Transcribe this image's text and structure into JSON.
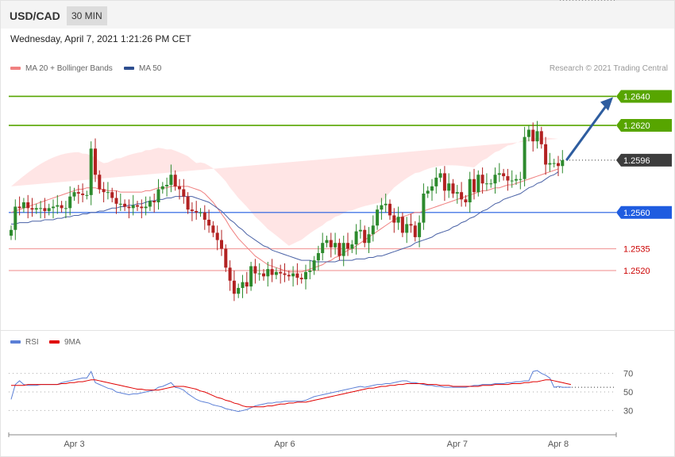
{
  "header": {
    "pair": "USD/CAD",
    "timeframe": "30 MIN",
    "datetime": "Wednesday, April 7, 2021 1:21:26 PM CET"
  },
  "legend": {
    "items": [
      {
        "label": "MA 20 + Bollinger Bands",
        "color": "#f08080"
      },
      {
        "label": "MA 50",
        "color": "#2e4e8f"
      }
    ],
    "credit": "Research © 2021 Trading Central"
  },
  "rsi_legend": {
    "items": [
      {
        "label": "RSI",
        "color": "#5b7fd6"
      },
      {
        "label": "9MA",
        "color": "#e00000"
      }
    ]
  },
  "colors": {
    "up": "#2d8a2d",
    "down": "#b22222",
    "resistance": "#57a500",
    "support": "#1f5ce0",
    "pivot": "#3d3d3d",
    "target_arrow": "#2e5d9f",
    "bb_fill": "#ffe1e1"
  },
  "chart_data": [
    {
      "type": "candlestick",
      "ylim": [
        1.2485,
        1.2655
      ],
      "x_ticks": [
        {
          "label": "Apr 3",
          "index": 15
        },
        {
          "label": "Apr 6",
          "index": 65
        },
        {
          "label": "Apr 7",
          "index": 106
        },
        {
          "label": "Apr 8",
          "index": 130
        }
      ],
      "levels": [
        {
          "value": 1.264,
          "label": "1.2640",
          "kind": "resistance"
        },
        {
          "value": 1.262,
          "label": "1.2620",
          "kind": "resistance"
        },
        {
          "value": 1.2596,
          "label": "1.2596",
          "kind": "pivot"
        },
        {
          "value": 1.256,
          "label": "1.2560",
          "kind": "support"
        },
        {
          "value": 1.2535,
          "label": "1.2535",
          "kind": "minor"
        },
        {
          "value": 1.252,
          "label": "1.2520",
          "kind": "minor"
        }
      ],
      "target": {
        "from": 1.2596,
        "to": 1.264
      },
      "closes": [
        1.2548,
        1.2564,
        1.2563,
        1.2567,
        1.2563,
        1.2562,
        1.2563,
        1.2563,
        1.2561,
        1.2563,
        1.2564,
        1.2565,
        1.2563,
        1.2563,
        1.2571,
        1.2574,
        1.2573,
        1.2572,
        1.2572,
        1.2604,
        1.2586,
        1.2576,
        1.2574,
        1.2574,
        1.257,
        1.2566,
        1.2566,
        1.2564,
        1.2563,
        1.2565,
        1.2564,
        1.2563,
        1.2564,
        1.2568,
        1.2567,
        1.2576,
        1.2578,
        1.2579,
        1.2586,
        1.2578,
        1.2576,
        1.2571,
        1.2562,
        1.2561,
        1.256,
        1.256,
        1.2555,
        1.2551,
        1.2546,
        1.2541,
        1.2535,
        1.2522,
        1.2513,
        1.2504,
        1.2508,
        1.2512,
        1.2509,
        1.2523,
        1.2518,
        1.2518,
        1.2516,
        1.2521,
        1.2517,
        1.2519,
        1.2518,
        1.2517,
        1.2516,
        1.2518,
        1.2515,
        1.2514,
        1.2519,
        1.252,
        1.2527,
        1.2532,
        1.2539,
        1.2541,
        1.2536,
        1.2539,
        1.253,
        1.2539,
        1.2535,
        1.2538,
        1.2547,
        1.2548,
        1.2539,
        1.2545,
        1.2551,
        1.2562,
        1.2565,
        1.2566,
        1.2558,
        1.2553,
        1.2557,
        1.2546,
        1.2552,
        1.2551,
        1.2543,
        1.2553,
        1.2573,
        1.2575,
        1.2578,
        1.2584,
        1.2587,
        1.2575,
        1.258,
        1.2573,
        1.2574,
        1.2569,
        1.2567,
        1.2583,
        1.2574,
        1.2586,
        1.258,
        1.258,
        1.258,
        1.2586,
        1.2587,
        1.2585,
        1.2582,
        1.2582,
        1.2583,
        1.2583,
        1.2612,
        1.2617,
        1.2609,
        1.2616,
        1.2607,
        1.2593,
        1.2594,
        1.2594,
        1.2592,
        1.2596
      ],
      "ma20": [
        1.256,
        1.2561,
        1.2562,
        1.2563,
        1.2564,
        1.2565,
        1.2566,
        1.2567,
        1.2568,
        1.2569,
        1.257,
        1.2571,
        1.2572,
        1.2573,
        1.2574,
        1.2575,
        1.2576,
        1.2576,
        1.2577,
        1.2577,
        1.2577,
        1.2576,
        1.2576,
        1.2575,
        1.2575,
        1.2575,
        1.2574,
        1.2574,
        1.2574,
        1.2574,
        1.2574,
        1.2574,
        1.2575,
        1.2575,
        1.2576,
        1.2577,
        1.2577,
        1.2577,
        1.2578,
        1.2578,
        1.2578,
        1.2578,
        1.2578,
        1.2577,
        1.2576,
        1.2575,
        1.2573,
        1.257,
        1.2567,
        1.2563,
        1.2559,
        1.2555,
        1.255,
        1.2546,
        1.2542,
        1.2539,
        1.2536,
        1.2533,
        1.253,
        1.2528,
        1.2526,
        1.2524,
        1.2523,
        1.2522,
        1.2521,
        1.252,
        1.2519,
        1.2519,
        1.2519,
        1.2519,
        1.252,
        1.2521,
        1.2522,
        1.2523,
        1.2524,
        1.2526,
        1.2527,
        1.2529,
        1.253,
        1.2532,
        1.2534,
        1.2535,
        1.2537,
        1.2539,
        1.2541,
        1.2543,
        1.2545,
        1.2547,
        1.2549,
        1.2551,
        1.2553,
        1.2555,
        1.2556,
        1.2557,
        1.2558,
        1.2559,
        1.256,
        1.256,
        1.2561,
        1.2562,
        1.2563,
        1.2564,
        1.2565,
        1.2566,
        1.2567,
        1.2568,
        1.2569,
        1.257,
        1.2571,
        1.2572,
        1.2573,
        1.2574,
        1.2575,
        1.2575,
        1.2576,
        1.2577,
        1.2577,
        1.2578,
        1.2579,
        1.2579,
        1.258,
        1.2581,
        1.2582,
        1.2583,
        1.2584,
        1.2585,
        1.2586,
        1.2587,
        1.2588,
        1.2589,
        1.259
      ],
      "ma50": [
        1.2552,
        1.2552,
        1.2553,
        1.2553,
        1.2553,
        1.2554,
        1.2554,
        1.2554,
        1.2555,
        1.2555,
        1.2555,
        1.2556,
        1.2556,
        1.2557,
        1.2557,
        1.2558,
        1.2558,
        1.2559,
        1.2559,
        1.256,
        1.256,
        1.2561,
        1.2561,
        1.2562,
        1.2563,
        1.2563,
        1.2564,
        1.2564,
        1.2565,
        1.2565,
        1.2566,
        1.2566,
        1.2567,
        1.2568,
        1.2568,
        1.2569,
        1.2569,
        1.257,
        1.257,
        1.2571,
        1.2571,
        1.2571,
        1.2571,
        1.2571,
        1.257,
        1.2569,
        1.2568,
        1.2567,
        1.2565,
        1.2563,
        1.2561,
        1.2558,
        1.2555,
        1.2553,
        1.255,
        1.2548,
        1.2545,
        1.2543,
        1.2541,
        1.2539,
        1.2537,
        1.2536,
        1.2534,
        1.2533,
        1.2532,
        1.2531,
        1.253,
        1.2529,
        1.2528,
        1.2527,
        1.2527,
        1.2527,
        1.2526,
        1.2526,
        1.2526,
        1.2526,
        1.2526,
        1.2526,
        1.2527,
        1.2527,
        1.2527,
        1.2527,
        1.2528,
        1.2528,
        1.2528,
        1.2529,
        1.2529,
        1.253,
        1.253,
        1.2531,
        1.2532,
        1.2533,
        1.2534,
        1.2535,
        1.2536,
        1.2537,
        1.2539,
        1.254,
        1.2541,
        1.2542,
        1.2543,
        1.2545,
        1.2546,
        1.2547,
        1.2548,
        1.255,
        1.2551,
        1.2553,
        1.2554,
        1.2556,
        1.2557,
        1.2559,
        1.2561,
        1.2562,
        1.2564,
        1.2566,
        1.2567,
        1.2569,
        1.257,
        1.2571,
        1.2572,
        1.2573,
        1.2575,
        1.2577,
        1.2578,
        1.258,
        1.2581,
        1.2583,
        1.2585,
        1.2586,
        1.2588
      ]
    },
    {
      "type": "line",
      "ylim": [
        15,
        85
      ],
      "y_ticks": [
        70,
        50,
        30
      ],
      "rsi_last": 55,
      "series": [
        {
          "name": "RSI",
          "values": [
            42,
            58,
            62,
            58,
            57,
            57,
            57,
            58,
            58,
            58,
            58,
            58,
            60,
            61,
            62,
            63,
            64,
            65,
            65,
            72,
            60,
            58,
            56,
            54,
            53,
            50,
            49,
            48,
            47,
            48,
            48,
            49,
            50,
            51,
            52,
            55,
            56,
            58,
            60,
            55,
            54,
            52,
            48,
            45,
            42,
            40,
            39,
            38,
            36,
            35,
            34,
            32,
            31,
            30,
            29,
            30,
            31,
            33,
            35,
            36,
            37,
            38,
            38,
            39,
            39,
            40,
            40,
            40,
            40,
            40,
            41,
            43,
            45,
            46,
            47,
            48,
            49,
            50,
            51,
            52,
            53,
            54,
            55,
            56,
            55,
            56,
            57,
            58,
            58,
            59,
            59,
            60,
            61,
            62,
            62,
            60,
            60,
            59,
            58,
            57,
            57,
            56,
            56,
            55,
            55,
            55,
            55,
            55,
            55,
            56,
            57,
            57,
            58,
            58,
            58,
            59,
            59,
            59,
            60,
            60,
            61,
            61,
            62,
            62,
            72,
            73,
            70,
            68,
            65,
            55,
            56,
            55,
            55,
            55
          ]
        },
        {
          "name": "9MA",
          "values": [
            57,
            57,
            57,
            57,
            58,
            58,
            58,
            58,
            58,
            58,
            58,
            58,
            59,
            59,
            60,
            60,
            61,
            61,
            62,
            63,
            63,
            62,
            61,
            60,
            59,
            58,
            57,
            56,
            55,
            54,
            53,
            53,
            52,
            52,
            52,
            52,
            53,
            54,
            55,
            56,
            56,
            56,
            55,
            54,
            53,
            51,
            50,
            48,
            46,
            44,
            43,
            41,
            40,
            38,
            37,
            35,
            34,
            34,
            34,
            34,
            34,
            35,
            35,
            36,
            37,
            37,
            38,
            38,
            39,
            39,
            39,
            40,
            41,
            42,
            43,
            44,
            45,
            46,
            47,
            48,
            49,
            50,
            51,
            52,
            53,
            54,
            54,
            55,
            56,
            56,
            57,
            57,
            58,
            58,
            59,
            59,
            59,
            59,
            59,
            58,
            58,
            58,
            57,
            57,
            57,
            56,
            56,
            56,
            56,
            56,
            56,
            56,
            57,
            57,
            57,
            58,
            58,
            58,
            58,
            59,
            59,
            59,
            60,
            60,
            61,
            61,
            62,
            63,
            63,
            62,
            61,
            60,
            59,
            58
          ]
        }
      ]
    }
  ]
}
